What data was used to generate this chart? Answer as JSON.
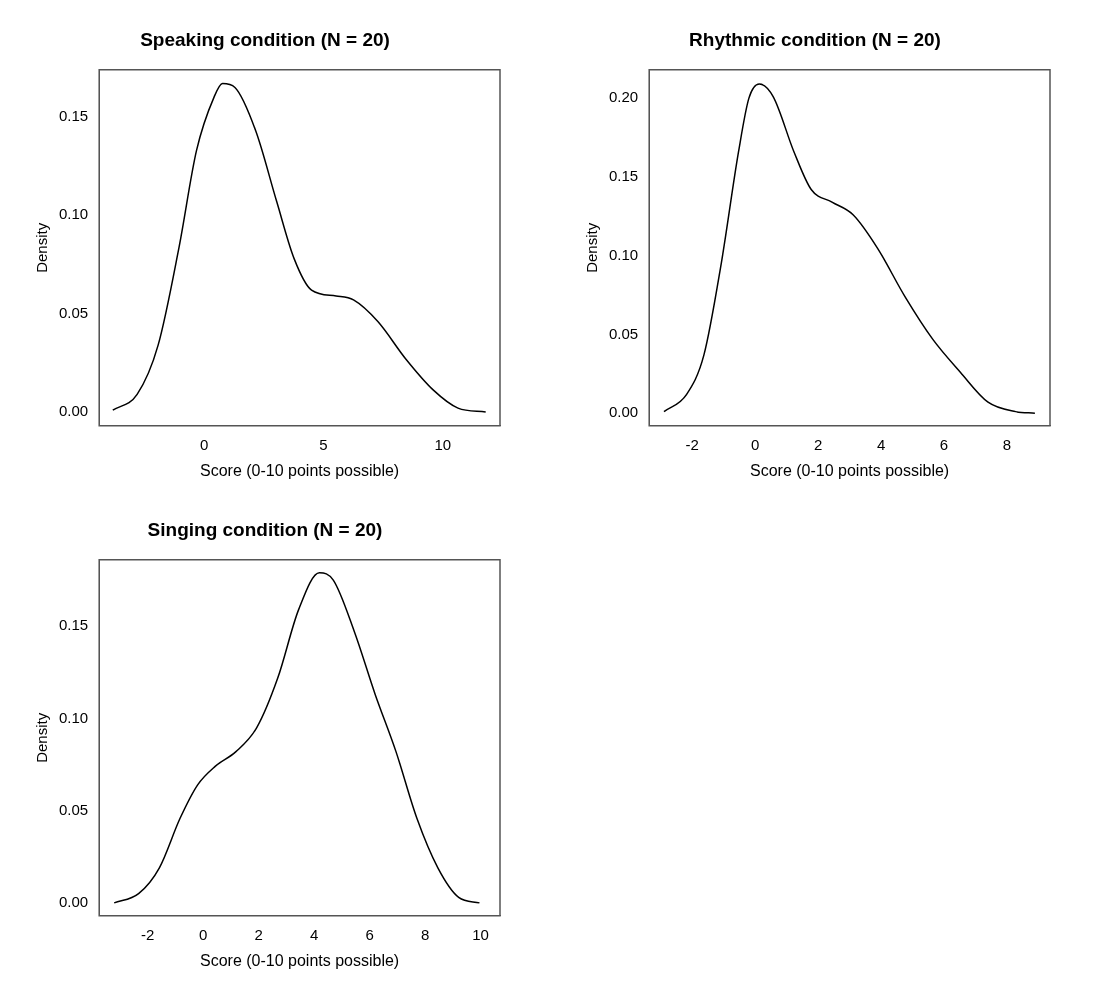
{
  "chart_data": [
    {
      "type": "line",
      "title": "Speaking condition (N = 20)",
      "xlabel": "Score (0-10 points possible)",
      "ylabel": "Density",
      "series": [
        {
          "color": "#000000",
          "x": [
            -3.83,
            -2.81,
            -1.93,
            -1.05,
            -0.32,
            0.41,
            0.77,
            1.29,
            2.16,
            3.04,
            3.77,
            4.5,
            5.53,
            6.26,
            7.28,
            8.45,
            9.62,
            10.64,
            11.8
          ],
          "values": [
            0.001,
            0.009,
            0.034,
            0.084,
            0.133,
            0.16,
            0.167,
            0.165,
            0.143,
            0.107,
            0.078,
            0.062,
            0.059,
            0.057,
            0.046,
            0.027,
            0.011,
            0.002,
            0.0
          ]
        }
      ],
      "xlim": [
        -4.4,
        12.4
      ],
      "xticks": [
        0,
        5,
        10
      ],
      "ylim": [
        -0.007,
        0.174
      ],
      "yticks": [
        {
          "value": 0,
          "label": "0.00"
        },
        {
          "value": 0.05,
          "label": "0.05"
        },
        {
          "value": 0.1,
          "label": "0.10"
        },
        {
          "value": 0.15,
          "label": "0.15"
        }
      ],
      "grid": false,
      "legend": false,
      "marker": "none",
      "line_style": "solid"
    },
    {
      "type": "line",
      "title": "Rhythmic condition (N = 20)",
      "xlabel": "Score (0-10 points possible)",
      "ylabel": "Density",
      "series": [
        {
          "color": "#000000",
          "x": [
            -2.9,
            -2.18,
            -1.63,
            -1.08,
            -0.53,
            -0.2,
            0.13,
            0.57,
            1.23,
            1.78,
            2.44,
            3.11,
            3.88,
            4.76,
            5.64,
            6.52,
            7.4,
            8.28,
            8.89
          ],
          "values": [
            0.001,
            0.012,
            0.037,
            0.095,
            0.166,
            0.2,
            0.209,
            0.201,
            0.166,
            0.142,
            0.134,
            0.126,
            0.105,
            0.074,
            0.047,
            0.026,
            0.007,
            0.001,
            0.0
          ]
        }
      ],
      "xlim": [
        -3.37,
        9.37
      ],
      "xticks": [
        -2,
        0,
        2,
        4,
        6,
        8
      ],
      "ylim": [
        -0.008,
        0.218
      ],
      "yticks": [
        {
          "value": 0,
          "label": "0.00"
        },
        {
          "value": 0.05,
          "label": "0.05"
        },
        {
          "value": 0.1,
          "label": "0.10"
        },
        {
          "value": 0.15,
          "label": "0.15"
        },
        {
          "value": 0.2,
          "label": "0.20"
        }
      ],
      "grid": false,
      "legend": false,
      "marker": "none",
      "line_style": "solid"
    },
    {
      "type": "line",
      "title": "Singing condition (N = 20)",
      "xlabel": "Score (0-10 points possible)",
      "ylabel": "Density",
      "series": [
        {
          "color": "#000000",
          "x": [
            -3.21,
            -2.33,
            -1.58,
            -0.83,
            -0.2,
            0.43,
            1.18,
            1.93,
            2.69,
            3.44,
            4.19,
            4.69,
            5.45,
            6.2,
            6.95,
            7.7,
            8.46,
            9.21,
            9.96
          ],
          "values": [
            0.0,
            0.005,
            0.019,
            0.046,
            0.064,
            0.074,
            0.082,
            0.095,
            0.122,
            0.159,
            0.179,
            0.175,
            0.147,
            0.113,
            0.082,
            0.046,
            0.019,
            0.003,
            0.0
          ]
        }
      ],
      "xlim": [
        -3.75,
        10.7
      ],
      "xticks": [
        -2,
        0,
        2,
        4,
        6,
        8,
        10
      ],
      "ylim": [
        -0.007,
        0.186
      ],
      "yticks": [
        {
          "value": 0,
          "label": "0.00"
        },
        {
          "value": 0.05,
          "label": "0.05"
        },
        {
          "value": 0.1,
          "label": "0.10"
        },
        {
          "value": 0.15,
          "label": "0.15"
        }
      ],
      "grid": false,
      "legend": false,
      "marker": "none",
      "line_style": "solid"
    }
  ]
}
